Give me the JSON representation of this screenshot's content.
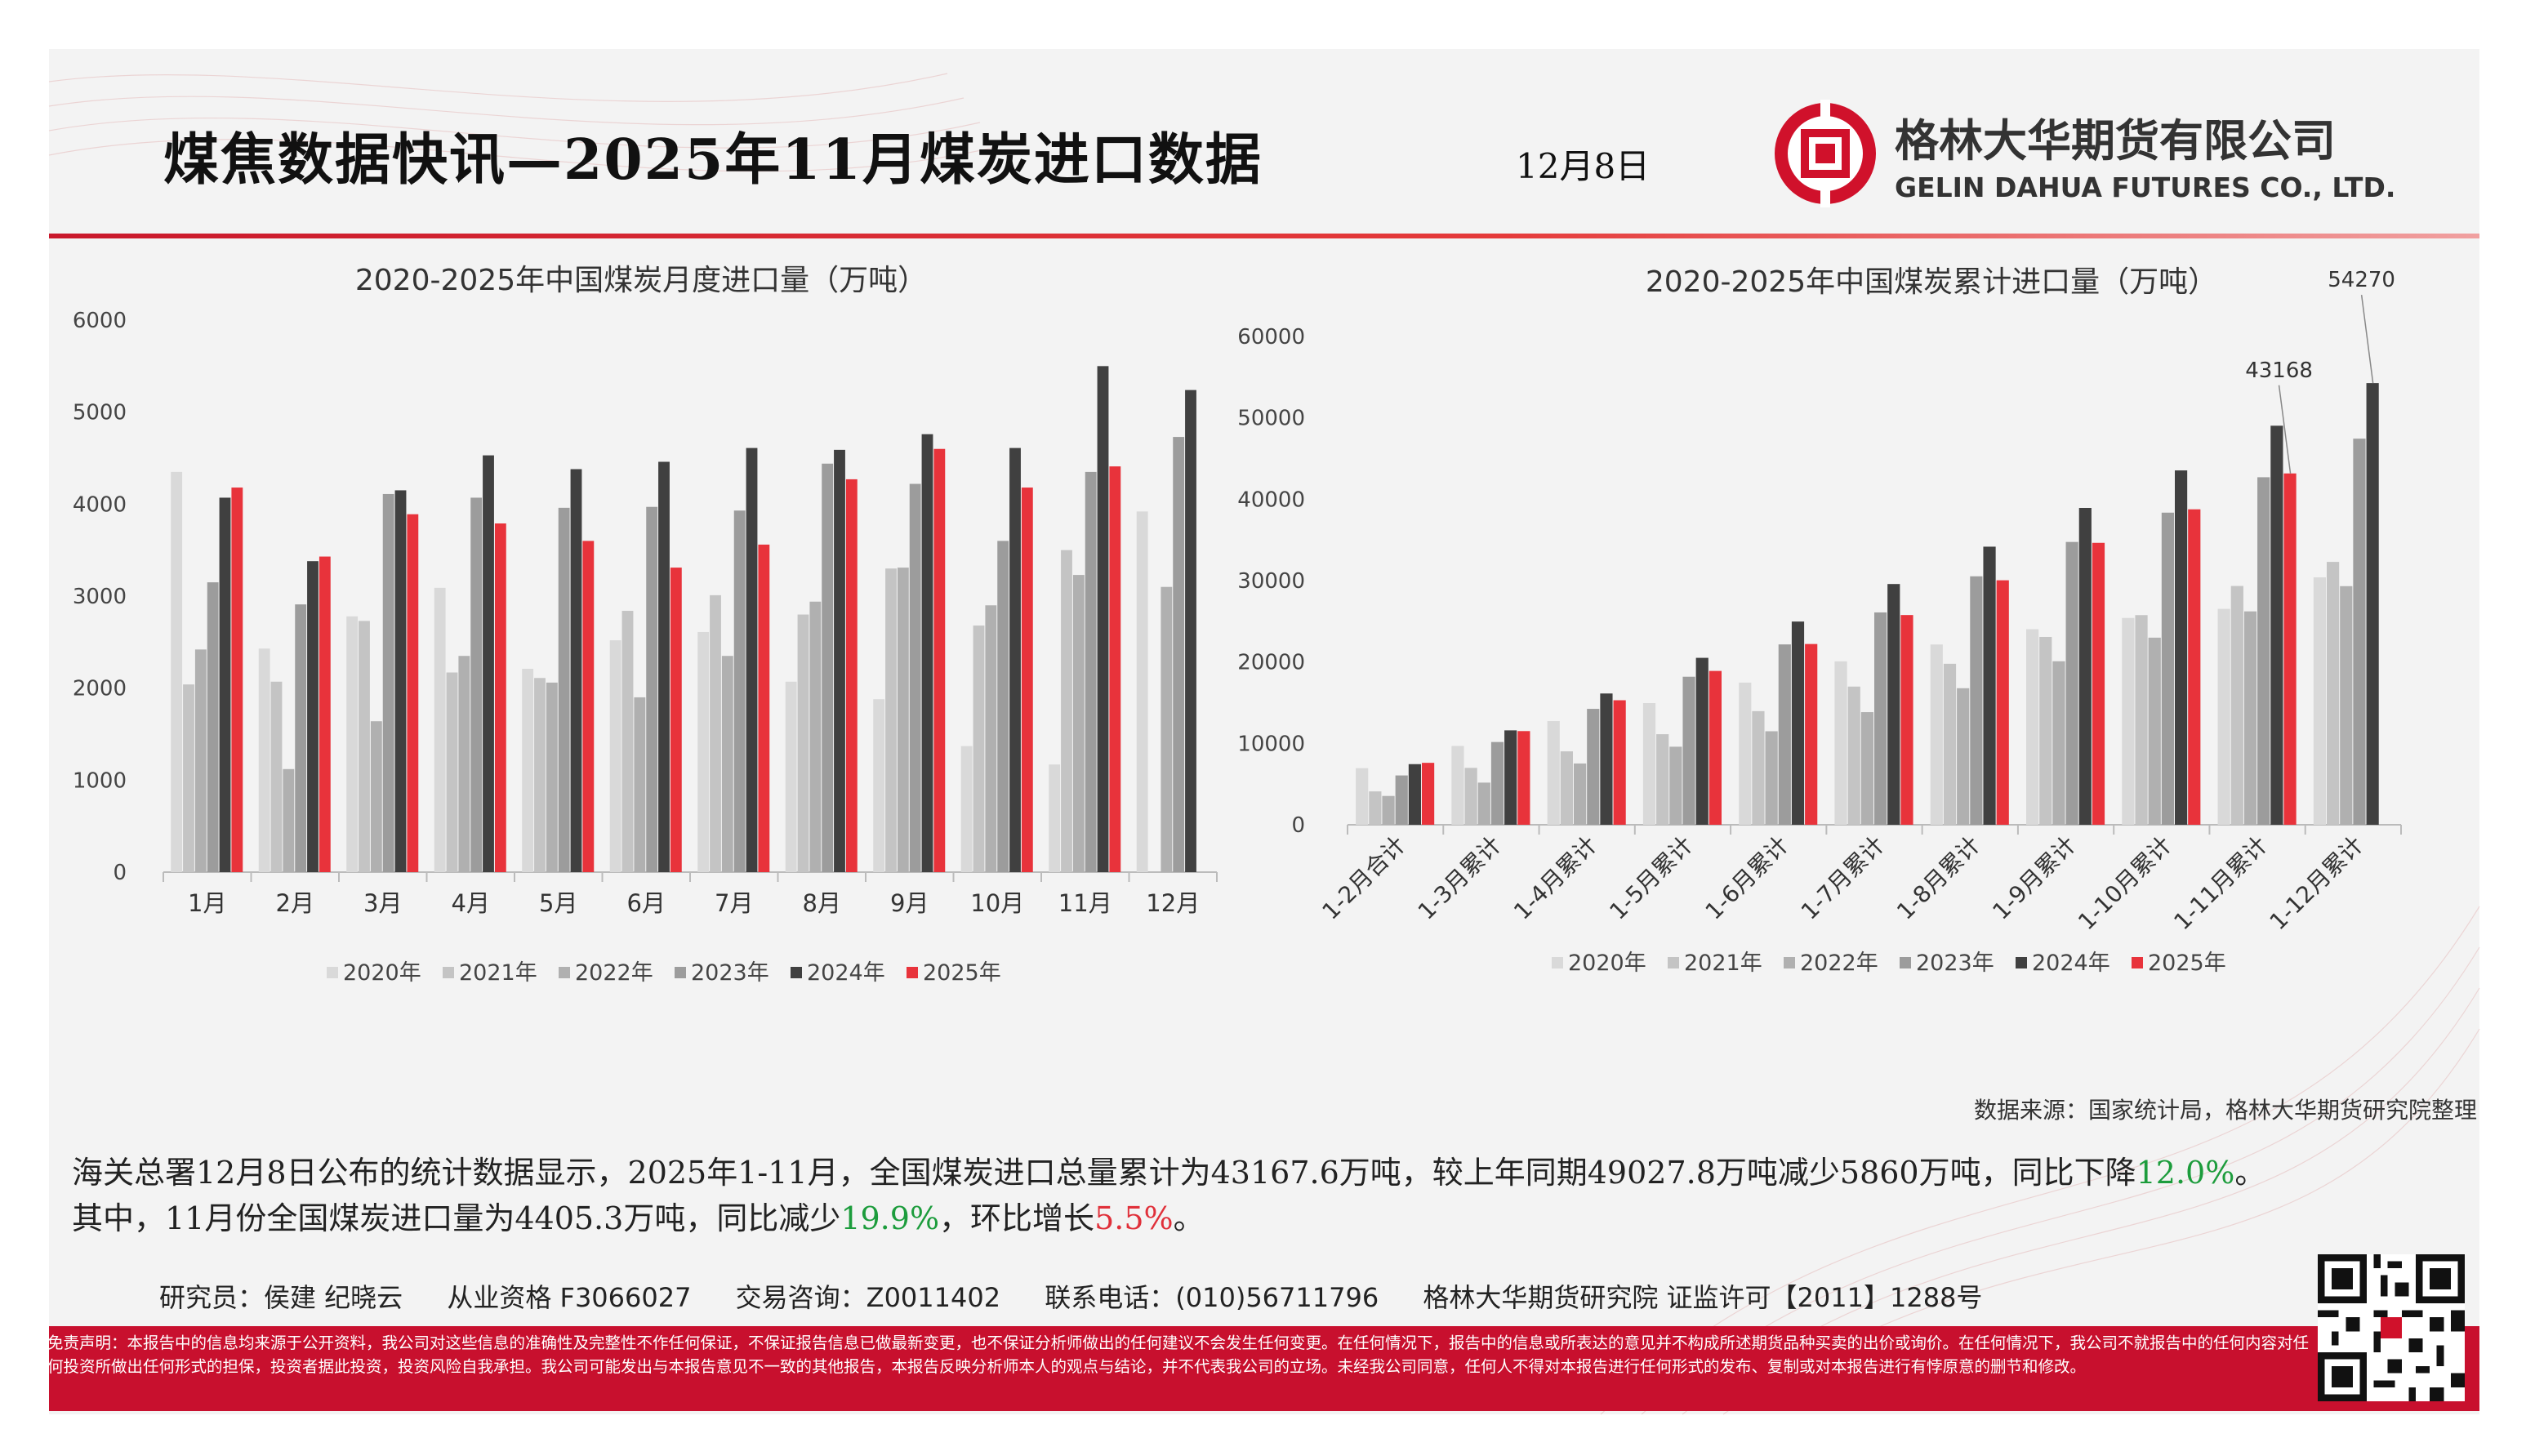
{
  "header": {
    "title": "煤焦数据快讯—2025年11月煤炭进口数据",
    "date": "12月8日",
    "company_cn": "格林大华期货有限公司",
    "company_en": "GELIN DAHUA FUTURES CO., LTD."
  },
  "colors": {
    "brand_red": "#c8102e",
    "s2020": "#d9d9d9",
    "s2021": "#c4c4c4",
    "s2022": "#b0b0b0",
    "s2023": "#9c9c9c",
    "s2024": "#404040",
    "s2025": "#e8333b"
  },
  "chart_data": [
    {
      "type": "bar",
      "title": "2020-2025年中国煤炭月度进口量（万吨）",
      "categories": [
        "1月",
        "2月",
        "3月",
        "4月",
        "5月",
        "6月",
        "7月",
        "8月",
        "9月",
        "10月",
        "11月",
        "12月"
      ],
      "ylim": [
        0,
        6000
      ],
      "yticks": [
        "0",
        "1000",
        "2000",
        "3000",
        "4000",
        "5000",
        "6000"
      ],
      "legend_position": "bottom",
      "series": [
        {
          "name": "2020年",
          "values": [
            4350,
            2430,
            2780,
            3090,
            2210,
            2520,
            2610,
            2070,
            1880,
            1370,
            1170,
            3920
          ]
        },
        {
          "name": "2021年",
          "values": [
            2040,
            2070,
            2730,
            2170,
            2110,
            2840,
            3010,
            2800,
            3300,
            2680,
            3500,
            null
          ]
        },
        {
          "name": "2022年",
          "values": [
            2420,
            1120,
            1640,
            2350,
            2060,
            1900,
            2350,
            2940,
            3310,
            2900,
            3230,
            3100
          ]
        },
        {
          "name": "2023年",
          "values": [
            3150,
            2910,
            4110,
            4070,
            3960,
            3970,
            3930,
            4440,
            4220,
            3600,
            4350,
            4730
          ]
        },
        {
          "name": "2024年",
          "values": [
            4070,
            3380,
            4150,
            4530,
            4380,
            4460,
            4610,
            4590,
            4760,
            4610,
            5500,
            5240
          ]
        },
        {
          "name": "2025年",
          "values": [
            4180,
            3430,
            3890,
            3790,
            3600,
            3310,
            3560,
            4270,
            4600,
            4180,
            4410,
            null
          ]
        }
      ]
    },
    {
      "type": "bar",
      "title": "2020-2025年中国煤炭累计进口量（万吨）",
      "categories": [
        "1-2月合计",
        "1-3月累计",
        "1-4月累计",
        "1-5月累计",
        "1-6月累计",
        "1-7月累计",
        "1-8月累计",
        "1-9月累计",
        "1-10月累计",
        "1-11月累计",
        "1-12月累计"
      ],
      "ylim": [
        0,
        60000
      ],
      "yticks": [
        "0",
        "10000",
        "20000",
        "30000",
        "40000",
        "50000",
        "60000"
      ],
      "legend_position": "bottom",
      "annotations": [
        {
          "category": "1-11月累计",
          "series": "2025年",
          "label": "43168"
        },
        {
          "category": "1-12月累计",
          "series": "2024年",
          "label": "54270"
        }
      ],
      "series": [
        {
          "name": "2020年",
          "values": [
            6960,
            9680,
            12740,
            14950,
            17470,
            20080,
            22150,
            24030,
            25410,
            26530,
            30400
          ]
        },
        {
          "name": "2021年",
          "values": [
            4100,
            6990,
            9020,
            11130,
            13960,
            16980,
            19780,
            23080,
            25760,
            29340,
            32300
          ]
        },
        {
          "name": "2022年",
          "values": [
            3540,
            5180,
            7530,
            9590,
            11490,
            13840,
            16780,
            20090,
            22990,
            26220,
            29320
          ]
        },
        {
          "name": "2023年",
          "values": [
            6060,
            10170,
            14240,
            18190,
            22160,
            26090,
            30530,
            34750,
            38350,
            42700,
            47440
          ]
        },
        {
          "name": "2024年",
          "values": [
            7450,
            11600,
            16130,
            20510,
            24970,
            29580,
            34170,
            38930,
            43540,
            49030,
            54270
          ]
        },
        {
          "name": "2025年",
          "values": [
            7610,
            11510,
            15300,
            18900,
            22210,
            25770,
            30040,
            34640,
            38760,
            43168,
            null
          ]
        }
      ]
    }
  ],
  "body": {
    "source": "数据来源：国家统计局，格林大华期货研究院整理",
    "p1_a": "海关总署12月8日公布的统计数据显示，2025年1-11月，全国煤炭进口总量累计为43167.6万吨，较上年同期49027.8万吨减少5860万吨，同比下降",
    "p1_pct": "12.0%",
    "p1_end": "。",
    "p2_a": "其中，11月份全国煤炭进口量为4405.3万吨，同比减少",
    "p2_yoy": "19.9%",
    "p2_b": "，环比增长",
    "p2_mom": "5.5%",
    "p2_end": "。"
  },
  "staff": {
    "researcher": "研究员：侯建   纪晓云",
    "qualification": "从业资格 F3066027",
    "consult": "交易咨询：Z0011402",
    "phone": "联系电话：(010)56711796",
    "license": "格林大华期货研究院  证监许可【2011】1288号"
  },
  "disclaimer": "免责声明：本报告中的信息均来源于公开资料，我公司对这些信息的准确性及完整性不作任何保证，不保证报告信息已做最新变更，也不保证分析师做出的任何建议不会发生任何变更。在任何情况下，报告中的信息或所表达的意见并不构成所述期货品种买卖的出价或询价。在任何情况下，我公司不就报告中的任何内容对任何投资所做出任何形式的担保，投资者据此投资，投资风险自我承担。我公司可能发出与本报告意见不一致的其他报告，本报告反映分析师本人的观点与结论，并不代表我公司的立场。未经我公司同意，任何人不得对本报告进行任何形式的发布、复制或对本报告进行有悖原意的删节和修改。"
}
